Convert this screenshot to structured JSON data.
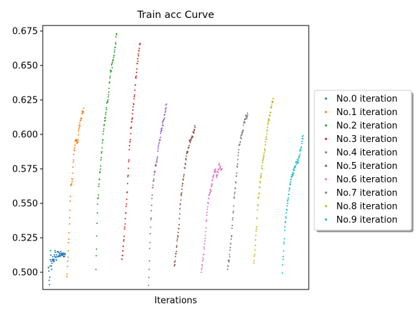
{
  "chart_data": {
    "type": "scatter",
    "title": "Train acc Curve",
    "xlabel": "Iterations",
    "ylabel": "",
    "ylim": [
      0.4875,
      0.679
    ],
    "yticks": [
      0.5,
      0.525,
      0.55,
      0.575,
      0.6,
      0.625,
      0.65,
      0.675
    ],
    "ytick_labels": [
      "0.500",
      "0.525",
      "0.550",
      "0.575",
      "0.600",
      "0.625",
      "0.650",
      "0.675"
    ],
    "xticks": [],
    "grid": false,
    "legend_position": "right",
    "series": [
      {
        "name": "No.0 iteration",
        "color": "#1f77b4",
        "points": [
          [
            0,
            0.505
          ],
          [
            2,
            0.493
          ],
          [
            4,
            0.514
          ],
          [
            6,
            0.503
          ],
          [
            8,
            0.512
          ],
          [
            10,
            0.508
          ],
          [
            12,
            0.514
          ],
          [
            14,
            0.509
          ],
          [
            16,
            0.513
          ],
          [
            20,
            0.513
          ],
          [
            24,
            0.513
          ],
          [
            30,
            0.513
          ]
        ]
      },
      {
        "name": "No.1 iteration",
        "color": "#ff7f0e",
        "points": [
          [
            33,
            0.495
          ],
          [
            37,
            0.53
          ],
          [
            40,
            0.562
          ],
          [
            43,
            0.568
          ],
          [
            46,
            0.588
          ],
          [
            49,
            0.597
          ],
          [
            52,
            0.594
          ],
          [
            55,
            0.606
          ],
          [
            58,
            0.61
          ],
          [
            61,
            0.616
          ],
          [
            63,
            0.619
          ]
        ]
      },
      {
        "name": "No.2 iteration",
        "color": "#2ca02c",
        "points": [
          [
            85,
            0.503
          ],
          [
            88,
            0.55
          ],
          [
            91,
            0.566
          ],
          [
            95,
            0.585
          ],
          [
            99,
            0.604
          ],
          [
            103,
            0.617
          ],
          [
            107,
            0.628
          ],
          [
            111,
            0.645
          ],
          [
            115,
            0.652
          ],
          [
            119,
            0.662
          ],
          [
            122,
            0.673
          ]
        ]
      },
      {
        "name": "No.3 iteration",
        "color": "#d62728",
        "points": [
          [
            131,
            0.508
          ],
          [
            134,
            0.519
          ],
          [
            137,
            0.535
          ],
          [
            141,
            0.56
          ],
          [
            145,
            0.591
          ],
          [
            149,
            0.61
          ],
          [
            153,
            0.625
          ],
          [
            156,
            0.64
          ],
          [
            159,
            0.652
          ],
          [
            162,
            0.661
          ],
          [
            164,
            0.666
          ]
        ]
      },
      {
        "name": "No.4 iteration",
        "color": "#9467bd",
        "points": [
          [
            179,
            0.49
          ],
          [
            182,
            0.53
          ],
          [
            186,
            0.56
          ],
          [
            190,
            0.574
          ],
          [
            194,
            0.582
          ],
          [
            198,
            0.595
          ],
          [
            202,
            0.603
          ],
          [
            206,
            0.61
          ],
          [
            208,
            0.615
          ],
          [
            211,
            0.622
          ]
        ]
      },
      {
        "name": "No.5 iteration",
        "color": "#8c564b",
        "points": [
          [
            225,
            0.504
          ],
          [
            229,
            0.517
          ],
          [
            233,
            0.533
          ],
          [
            237,
            0.556
          ],
          [
            241,
            0.568
          ],
          [
            245,
            0.58
          ],
          [
            249,
            0.589
          ],
          [
            253,
            0.595
          ],
          [
            258,
            0.6
          ],
          [
            262,
            0.605
          ]
        ]
      },
      {
        "name": "No.6 iteration",
        "color": "#e377c2",
        "points": [
          [
            273,
            0.501
          ],
          [
            277,
            0.512
          ],
          [
            281,
            0.53
          ],
          [
            285,
            0.55
          ],
          [
            289,
            0.558
          ],
          [
            293,
            0.565
          ],
          [
            297,
            0.576
          ],
          [
            301,
            0.57
          ],
          [
            305,
            0.578
          ],
          [
            310,
            0.575
          ]
        ]
      },
      {
        "name": "No.7 iteration",
        "color": "#7f7f7f",
        "points": [
          [
            320,
            0.504
          ],
          [
            324,
            0.512
          ],
          [
            328,
            0.53
          ],
          [
            332,
            0.555
          ],
          [
            336,
            0.57
          ],
          [
            340,
            0.59
          ],
          [
            344,
            0.597
          ],
          [
            348,
            0.605
          ],
          [
            352,
            0.612
          ],
          [
            356,
            0.614
          ]
        ]
      },
      {
        "name": "No.8 iteration",
        "color": "#bcbd22",
        "points": [
          [
            367,
            0.505
          ],
          [
            371,
            0.528
          ],
          [
            375,
            0.553
          ],
          [
            379,
            0.568
          ],
          [
            383,
            0.58
          ],
          [
            387,
            0.59
          ],
          [
            391,
            0.603
          ],
          [
            395,
            0.613
          ],
          [
            399,
            0.622
          ],
          [
            402,
            0.626
          ]
        ]
      },
      {
        "name": "No.9 iteration",
        "color": "#17becf",
        "points": [
          [
            418,
            0.5
          ],
          [
            422,
            0.53
          ],
          [
            426,
            0.547
          ],
          [
            430,
            0.558
          ],
          [
            434,
            0.57
          ],
          [
            438,
            0.573
          ],
          [
            442,
            0.58
          ],
          [
            446,
            0.581
          ],
          [
            450,
            0.588
          ],
          [
            455,
            0.599
          ]
        ]
      }
    ]
  }
}
